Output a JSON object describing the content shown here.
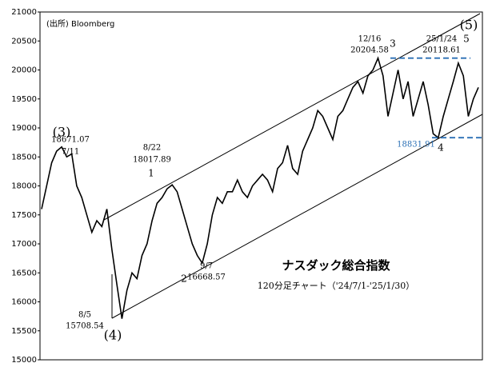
{
  "chart_data": {
    "type": "line",
    "source": "(出所) Bloomberg",
    "title": "ナスダック総合指数",
    "subtitle": "120分足チャート（'24/7/1-'25/1/30）",
    "values": [
      17600,
      18000,
      18400,
      18600,
      18671.07,
      18500,
      18550,
      18000,
      17800,
      17500,
      17200,
      17400,
      17300,
      17600,
      16900,
      16300,
      15708.54,
      16200,
      16500,
      16400,
      16800,
      17000,
      17400,
      17700,
      17800,
      17950,
      18017.89,
      17900,
      17600,
      17300,
      17000,
      16800,
      16668.57,
      17000,
      17500,
      17800,
      17700,
      17900,
      17900,
      18100,
      17900,
      17800,
      18000,
      18100,
      18200,
      18100,
      17900,
      18300,
      18400,
      18700,
      18300,
      18200,
      18600,
      18800,
      19000,
      19300,
      19200,
      19000,
      18800,
      19200,
      19300,
      19500,
      19700,
      19800,
      19600,
      19900,
      20000,
      20204.58,
      19900,
      19200,
      19600,
      20000,
      19500,
      19800,
      19200,
      19500,
      19800,
      19400,
      18900,
      18831.91,
      19200,
      19500,
      19800,
      20118.61,
      19900,
      19200,
      19500,
      19700
    ],
    "color": "#000000",
    "ylim": [
      15000,
      21000
    ],
    "yticks": [
      15000,
      15500,
      16000,
      16500,
      17000,
      17500,
      18000,
      18500,
      19000,
      19500,
      20000,
      20500,
      21000
    ],
    "annotations": [
      {
        "label": "7/11",
        "value": 18671.07
      },
      {
        "label": "8/22",
        "value": 18017.89
      },
      {
        "label": "8/5",
        "value": 15708.54
      },
      {
        "label": "9/7",
        "value": 16668.57
      },
      {
        "label": "12/16",
        "value": 20204.58
      },
      {
        "label": "25/1/24",
        "value": 20118.61
      },
      {
        "value": 18831.91
      }
    ],
    "wave_labels": [
      "(3)",
      "1",
      "(4)",
      "2",
      "3",
      "4",
      "5",
      "(5)"
    ]
  }
}
